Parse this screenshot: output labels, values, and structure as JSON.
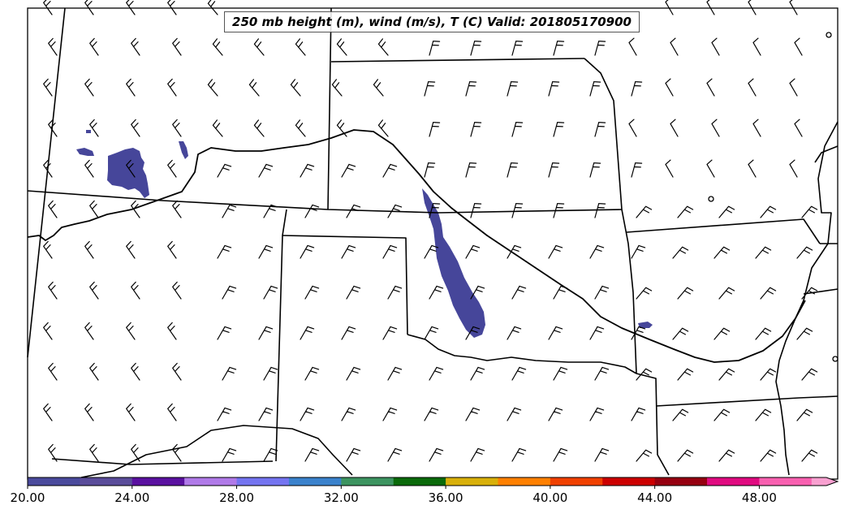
{
  "title": "250 mb height (m), wind (m/s), T (C) Valid: 201805170900",
  "colorbar": {
    "colors": [
      "#4a4a9c",
      "#5a4c9a",
      "#5a10a0",
      "#b07ae8",
      "#7474f0",
      "#3a82cc",
      "#3c9460",
      "#0a6a0a",
      "#d8b00a",
      "#ff8000",
      "#f04000",
      "#cc0000",
      "#960010",
      "#e00a80",
      "#f860b0",
      "#f8a0d0"
    ],
    "ticks": [
      "20.00",
      "24.00",
      "28.00",
      "32.00",
      "36.00",
      "40.00",
      "44.00",
      "48.00"
    ],
    "min": 20,
    "max": 51,
    "step": 2
  },
  "shading_color": "#46469a"
}
